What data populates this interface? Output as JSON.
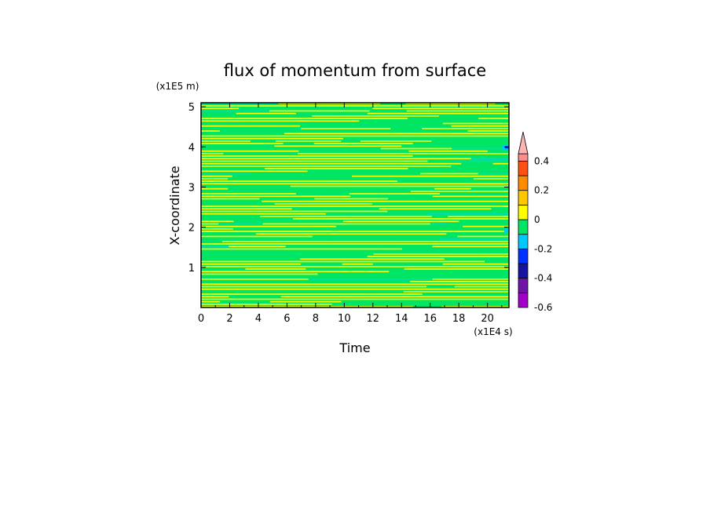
{
  "chart_data": {
    "type": "heatmap",
    "title": "flux of momentum from surface",
    "xlabel": "Time",
    "ylabel": "X-coordinate",
    "x_unit_label": "(x1E4 s)",
    "y_unit_label": "(x1E5 m)",
    "xlim": [
      0,
      21.5
    ],
    "ylim": [
      0,
      5.1
    ],
    "x_ticks": [
      0,
      2,
      4,
      6,
      8,
      10,
      12,
      14,
      16,
      18,
      20
    ],
    "y_ticks": [
      1,
      2,
      3,
      4,
      5
    ],
    "colorbar": {
      "levels": [
        -0.6,
        -0.5,
        -0.4,
        -0.3,
        -0.2,
        -0.1,
        0,
        0.1,
        0.2,
        0.3,
        0.4,
        0.45
      ],
      "colors": [
        "#a000c8",
        "#6e14aa",
        "#1414a0",
        "#0032ff",
        "#00c8ff",
        "#00e664",
        "#ffff00",
        "#ffc800",
        "#ff8c00",
        "#ff5014",
        "#ff8c8c"
      ],
      "extend_color": "#ffb4b4",
      "tick_labels": [
        "0.4",
        "0.2",
        "0",
        "-0.2",
        "-0.4",
        "-0.6"
      ],
      "tick_values": [
        0.4,
        0.2,
        0,
        -0.2,
        -0.4,
        -0.6
      ]
    },
    "field_description_values": {
      "dominant_range": [
        -0.1,
        0.1
      ]
    }
  }
}
